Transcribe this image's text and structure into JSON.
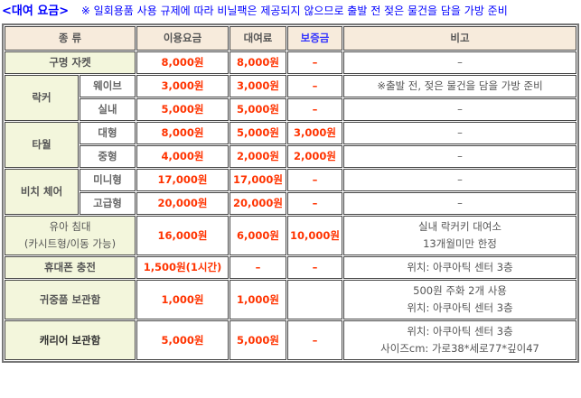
{
  "title": "<대여 요금>",
  "notice": "※ 일회용품 사용 규제에 따라 비닐팩은 제공되지 않으므로 출발 전 젖은 물건을 담을 가방 준비",
  "headers": {
    "type": "종 류",
    "fee": "이용요금",
    "rental": "대여료",
    "deposit": "보증금",
    "note": "비고"
  },
  "rows": {
    "jacket": {
      "cat": "구명 자켓",
      "fee": "8,000원",
      "rental": "8,000원",
      "deposit": "–",
      "note": "–"
    },
    "locker": {
      "cat": "락커",
      "wave": {
        "sub": "웨이브",
        "fee": "3,000원",
        "rental": "3,000원",
        "deposit": "–",
        "note": "※출발 전, 젖은 물건을 담을 가방 준비"
      },
      "indoor": {
        "sub": "실내",
        "fee": "5,000원",
        "rental": "5,000원",
        "deposit": "–",
        "note": "–"
      }
    },
    "towel": {
      "cat": "타월",
      "large": {
        "sub": "대형",
        "fee": "8,000원",
        "rental": "5,000원",
        "deposit": "3,000원",
        "note": "–"
      },
      "medium": {
        "sub": "중형",
        "fee": "4,000원",
        "rental": "2,000원",
        "deposit": "2,000원",
        "note": "–"
      }
    },
    "beach": {
      "cat": "비치 체어",
      "mini": {
        "sub": "미니형",
        "fee": "17,000원",
        "rental": "17,000원",
        "deposit": "–",
        "note": "–"
      },
      "premium": {
        "sub": "고급형",
        "fee": "20,000원",
        "rental": "20,000원",
        "deposit": "–",
        "note": "–"
      }
    },
    "baby": {
      "cat": "유아 침대",
      "cat2": "(카시트형/이동 가능)",
      "fee": "16,000원",
      "rental": "6,000원",
      "deposit": "10,000원",
      "note": "실내 락커키 대여소",
      "note2": "13개월미만 한정"
    },
    "phone": {
      "cat": "휴대폰 충전",
      "fee": "1,500원(1시간)",
      "rental": "–",
      "deposit": "–",
      "note": "위치: 아쿠아틱 센터 3층"
    },
    "valuables": {
      "cat": "귀중품 보관함",
      "fee": "1,000원",
      "rental": "1,000원",
      "deposit": "",
      "note": "500원 주화 2개 사용",
      "note2": "위치: 아쿠아틱 센터 3층"
    },
    "carrier": {
      "cat": "캐리어 보관함",
      "fee": "5,000원",
      "rental": "5,000원",
      "deposit": "–",
      "note": "위치: 아쿠아틱 센터 3층",
      "note2": "사이즈cm: 가로38*세로77*깊이47"
    }
  }
}
